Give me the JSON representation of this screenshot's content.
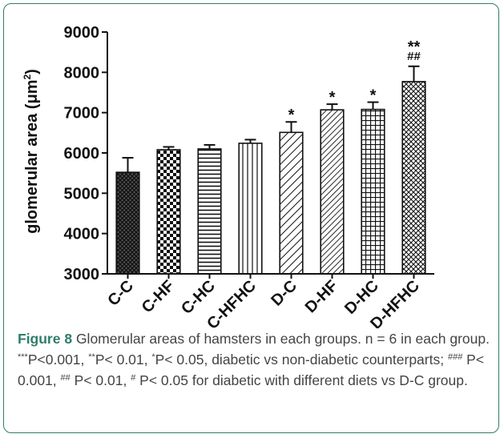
{
  "chart_data": {
    "type": "bar",
    "title": "",
    "xlabel": "",
    "ylabel_prefix": "glomerular area (",
    "ylabel_unit": "μm",
    "ylabel_sup": "2",
    "ylabel_suffix": ")",
    "ylim": [
      3000,
      9000
    ],
    "yticks": [
      "3000",
      "4000",
      "5000",
      "6000",
      "7000",
      "8000",
      "9000"
    ],
    "categories": [
      "C-C",
      "C-HF",
      "C-HC",
      "C-HFHC",
      "D-C",
      "D-HF",
      "D-HC",
      "D-HFHC"
    ],
    "values": [
      5520,
      6080,
      6100,
      6240,
      6510,
      7070,
      7080,
      7770
    ],
    "errors": [
      360,
      70,
      100,
      90,
      260,
      140,
      180,
      380
    ],
    "patterns": [
      "crosshatch-dark",
      "checker",
      "horizontal-lines",
      "vertical-lines",
      "diagonal-lines",
      "diagonal-lines-dense",
      "grid",
      "diagonal-crosshatch"
    ],
    "annotations": [
      {
        "category": "D-C",
        "lines": [
          "*"
        ]
      },
      {
        "category": "D-HF",
        "lines": [
          "*"
        ]
      },
      {
        "category": "D-HC",
        "lines": [
          "*"
        ]
      },
      {
        "category": "D-HFHC",
        "lines": [
          "**",
          "##"
        ]
      }
    ],
    "grid": false,
    "legend": "none"
  },
  "caption": {
    "label": "Figure 8",
    "text1": " Glomerular areas of hamsters in each groups. n = 6 in each group. ",
    "sup1": "***",
    "text2": "P<0.001, ",
    "sup2": "**",
    "text3": "P< 0.01, ",
    "sup3": "*",
    "text4": "P< 0.05, diabetic vs non-diabetic counterparts; ",
    "sup4": "###",
    "text5": " P< 0.001, ",
    "sup5": "##",
    "text6": " P< 0.01, ",
    "sup6": "#",
    "text7": " P< 0.05 for diabetic with different diets vs D-C group."
  },
  "colors": {
    "frame": "#2e7d6b",
    "caption_label": "#2e7d6b",
    "caption_text": "#444444",
    "ink": "#111111"
  }
}
